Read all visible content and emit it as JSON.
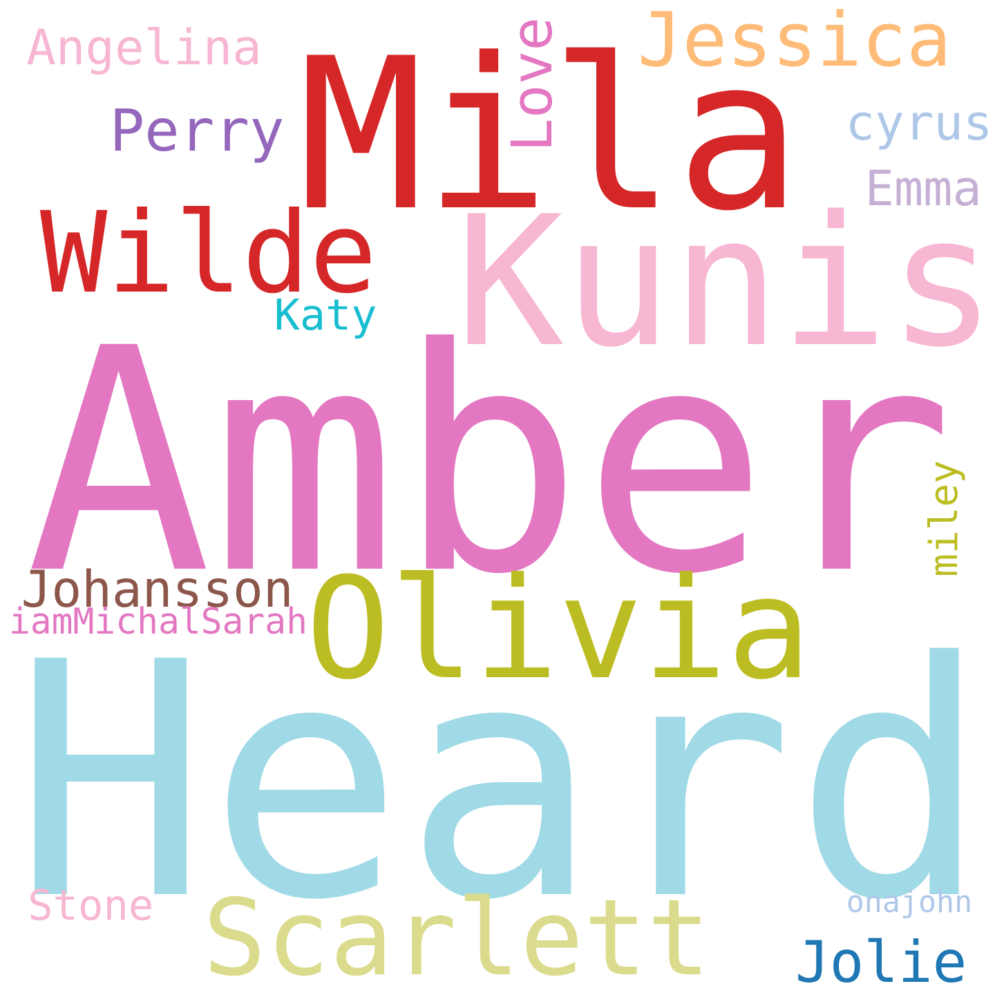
{
  "words": [
    {
      "text": "Amber",
      "color": "#e377c2",
      "rotate": false
    },
    {
      "text": "Heard",
      "color": "#a0dae6",
      "rotate": false
    },
    {
      "text": "Mila",
      "color": "#d62728",
      "rotate": false
    },
    {
      "text": "Kunis",
      "color": "#f7b6d2",
      "rotate": false
    },
    {
      "text": "Wilde",
      "color": "#d62728",
      "rotate": false
    },
    {
      "text": "Olivia",
      "color": "#bcbd22",
      "rotate": false
    },
    {
      "text": "Scarlett",
      "color": "#dbdb8d",
      "rotate": false
    },
    {
      "text": "Jessica",
      "color": "#ffbb78",
      "rotate": false
    },
    {
      "text": "Angelina",
      "color": "#f7b6d2",
      "rotate": false
    },
    {
      "text": "Perry",
      "color": "#9467bd",
      "rotate": false
    },
    {
      "text": "Love",
      "color": "#e377c2",
      "rotate": true
    },
    {
      "text": "cyrus",
      "color": "#aec7e8",
      "rotate": false
    },
    {
      "text": "Emma",
      "color": "#c5b0d5",
      "rotate": false
    },
    {
      "text": "Katy",
      "color": "#17becf",
      "rotate": false
    },
    {
      "text": "Johansson",
      "color": "#8c564b",
      "rotate": false
    },
    {
      "text": "miley",
      "color": "#bcbd22",
      "rotate": true
    },
    {
      "text": "iamMichalSarah",
      "color": "#e377c2",
      "rotate": false
    },
    {
      "text": "Stone",
      "color": "#f7b6d2",
      "rotate": false
    },
    {
      "text": "onajohn",
      "color": "#aec7e8",
      "rotate": false
    },
    {
      "text": "Jolie",
      "color": "#1f77b4",
      "rotate": false
    }
  ]
}
